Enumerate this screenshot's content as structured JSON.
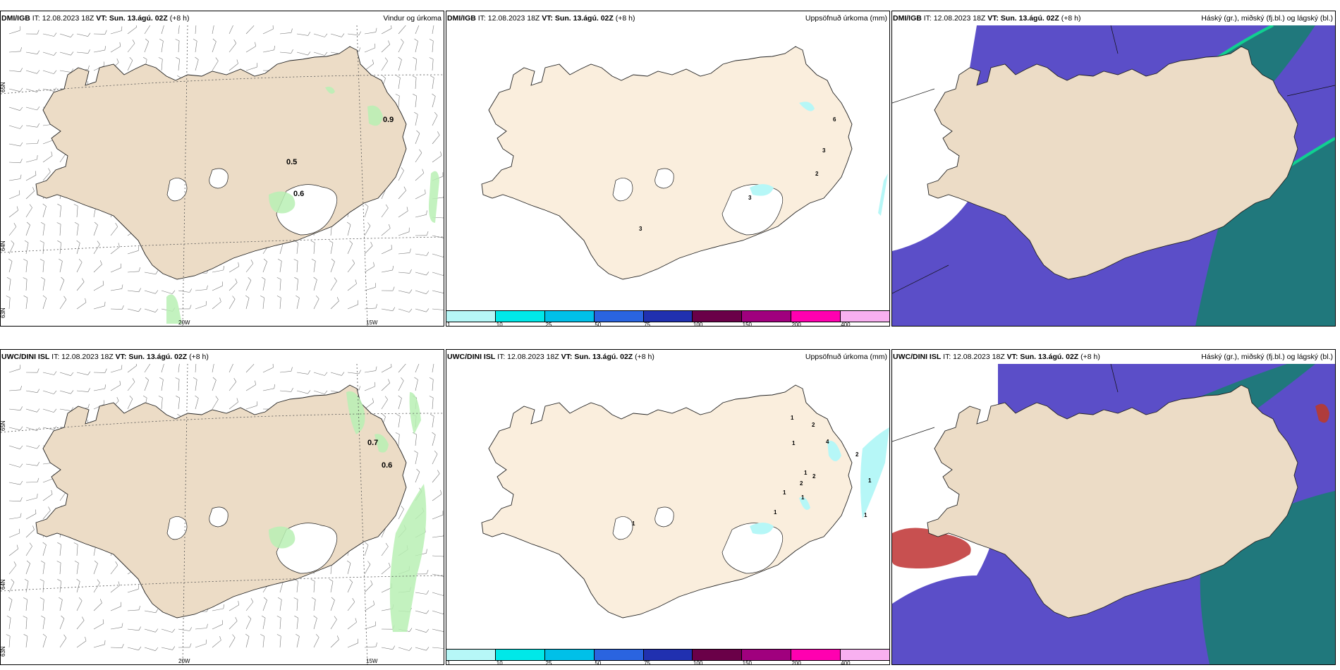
{
  "panels": [
    {
      "id": "p1",
      "type": "wind",
      "source": "DMI/IGB",
      "it": "IT: 12.08.2023 18Z",
      "vt": "VT: Sun. 13.ágú. 02Z",
      "lead": "(+8 h)",
      "title": "Vindur og úrkoma",
      "labels": [
        {
          "text": "0.9"
        },
        {
          "text": "0.5"
        },
        {
          "text": "0.6"
        }
      ],
      "lat_labels": [
        "65N",
        "64N",
        "63N"
      ],
      "lon_labels": [
        "20W",
        "15W"
      ]
    },
    {
      "id": "p2",
      "type": "precip",
      "source": "DMI/IGB",
      "it": "IT: 12.08.2023 18Z",
      "vt": "VT: Sun. 13.ágú. 02Z",
      "lead": "(+8 h)",
      "title": "Uppsöfnuð úrkoma (mm)",
      "labels": [
        {
          "text": "6"
        },
        {
          "text": "3"
        },
        {
          "text": "2"
        },
        {
          "text": "3"
        },
        {
          "text": "3"
        }
      ]
    },
    {
      "id": "p3",
      "type": "cloud",
      "source": "DMI/IGB",
      "it": "IT: 12.08.2023 18Z",
      "vt": "VT: Sun. 13.ágú. 02Z",
      "lead": "(+8 h)",
      "title": "Háský (gr.), miðský (fj.bl.) og lágský (bl.)",
      "variant": "a"
    },
    {
      "id": "p4",
      "type": "wind",
      "source": "UWC/DINI ISL",
      "it": "IT: 12.08.2023 18Z",
      "vt": "VT: Sun. 13.ágú. 02Z",
      "lead": "(+8 h)",
      "title": "",
      "labels": [
        {
          "text": "0.7"
        },
        {
          "text": "0.6"
        }
      ],
      "lat_labels": [
        "65N",
        "64N",
        "63N"
      ],
      "lon_labels": [
        "20W",
        "15W"
      ]
    },
    {
      "id": "p5",
      "type": "precip",
      "source": "UWC/DINI ISL",
      "it": "IT: 12.08.2023 18Z",
      "vt": "VT: Sun. 13.ágú. 02Z",
      "lead": "(+8 h)",
      "title": "Uppsöfnuð úrkoma (mm)",
      "labels": [
        {
          "text": "1"
        },
        {
          "text": "2"
        },
        {
          "text": "1"
        },
        {
          "text": "4"
        },
        {
          "text": "2"
        },
        {
          "text": "1"
        },
        {
          "text": "2"
        },
        {
          "text": "2"
        },
        {
          "text": "1"
        },
        {
          "text": "1"
        },
        {
          "text": "1"
        },
        {
          "text": "1"
        },
        {
          "text": "1"
        },
        {
          "text": "1"
        }
      ]
    },
    {
      "id": "p6",
      "type": "cloud",
      "source": "UWC/DINI ISL",
      "it": "IT: 12.08.2023 18Z",
      "vt": "VT: Sun. 13.ágú. 02Z",
      "lead": "(+8 h)",
      "title": "Háský (gr.), miðský (fj.bl.) og lágský (bl.)",
      "variant": "b"
    }
  ],
  "colorbar": {
    "ticks": [
      "1",
      "10",
      "25",
      "50",
      "75",
      "100",
      "150",
      "200",
      "400"
    ],
    "colors": [
      "#b6f7f7",
      "#00e8e8",
      "#00c0e8",
      "#2a64e0",
      "#2030b0",
      "#6a0048",
      "#a0007e",
      "#ff00b0",
      "#f8b0f0"
    ]
  },
  "colors": {
    "land": "#ecdcc6",
    "precip_land": "#faeedd",
    "wind_precip": "#b9f0b4",
    "low_cloud": "#5b4ec8",
    "mid_cloud": "#1e7a78",
    "high_cloud": "#10d090",
    "red": "#c85050"
  }
}
